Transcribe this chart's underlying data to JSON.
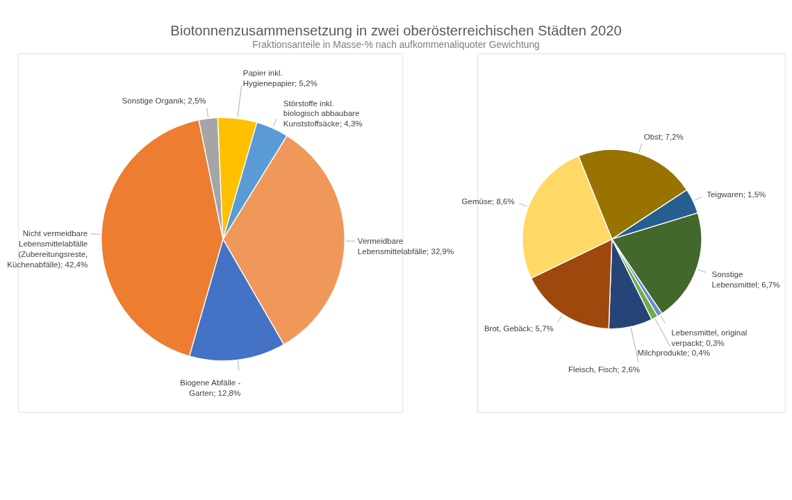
{
  "chart_data": [
    {
      "type": "pie",
      "title": "Biotonnenzusammensetzung in zwei oberösterreichischen Städten 2020",
      "subtitle": "Fraktionsanteile in Masse-% nach aufkommenaliquoter Gewichtung",
      "categories": [
        "Vermeidbare Lebensmittelabfälle",
        "Biogene Abfälle - Garten",
        "Nicht vermeidbare Lebensmittelabfälle (Zubereitungsreste, Küchenabfälle)",
        "Sonstige Organik",
        "Papier inkl. Hygienepapier",
        "Störstoffe inkl. biologisch abbaubare Kunststoffsäcke"
      ],
      "values": [
        32.9,
        12.8,
        42.4,
        2.5,
        5.2,
        4.3
      ],
      "value_labels": [
        "32,9%",
        "12,8%",
        "42,4%",
        "2,5%",
        "5,2%",
        "4,3%"
      ],
      "colors": [
        "#f0985a",
        "#4472c4",
        "#ed7d31",
        "#a5a5a5",
        "#ffc000",
        "#5b9bd5"
      ]
    },
    {
      "type": "pie",
      "categories": [
        "Obst",
        "Teigwaren",
        "Sonstige Lebensmittel",
        "Lebensmittel, original verpackt",
        "Milchprodukte",
        "Fleisch, Fisch",
        "Brot, Gebäck",
        "Gemüse"
      ],
      "values": [
        7.2,
        1.5,
        6.7,
        0.3,
        0.4,
        2.6,
        5.7,
        8.6
      ],
      "value_labels": [
        "7,2%",
        "1,5%",
        "6,7%",
        "0,3%",
        "0,4%",
        "2,6%",
        "5,7%",
        "8,6%"
      ],
      "colors": [
        "#997300",
        "#255e91",
        "#43682b",
        "#698ed0",
        "#70ad47",
        "#264478",
        "#9e480e",
        "#ffd966"
      ]
    }
  ]
}
